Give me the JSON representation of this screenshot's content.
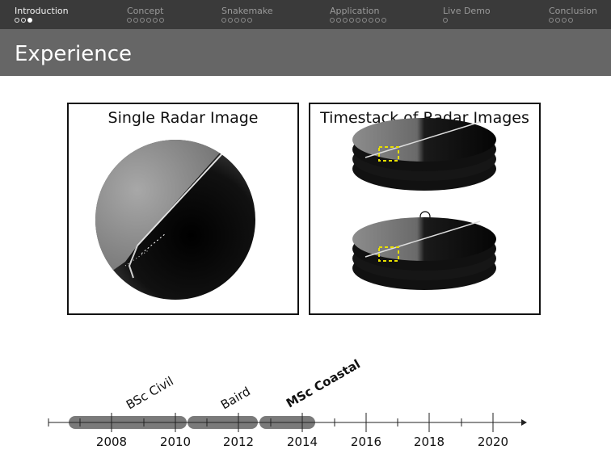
{
  "nav": {
    "sections": [
      {
        "label": "Introduction",
        "dots": 3,
        "current": 2,
        "active": true
      },
      {
        "label": "Concept",
        "dots": 6,
        "current": -1,
        "active": false
      },
      {
        "label": "Snakemake",
        "dots": 5,
        "current": -1,
        "active": false
      },
      {
        "label": "Application",
        "dots": 9,
        "current": -1,
        "active": false
      },
      {
        "label": "Live Demo",
        "dots": 1,
        "current": -1,
        "active": false
      },
      {
        "label": "Conclusion",
        "dots": 4,
        "current": -1,
        "active": false
      }
    ]
  },
  "frame": {
    "title": "Experience"
  },
  "panels": {
    "single": {
      "title": "Single Radar Image"
    },
    "timestack": {
      "title": "Timestack of Radar Images"
    }
  },
  "timeline": {
    "ticks": [
      "2008",
      "2010",
      "2012",
      "2014",
      "2016",
      "2018",
      "2020"
    ],
    "periods": [
      {
        "label": "BSc Civil",
        "bold": false
      },
      {
        "label": "Baird",
        "bold": false
      },
      {
        "label": "MSc Coastal",
        "bold": true
      }
    ]
  },
  "colors": {
    "nav_bg": "#3a3a3a",
    "title_bg": "#666666",
    "bar": "#7a7a7a",
    "highlight": "#e8e000"
  }
}
